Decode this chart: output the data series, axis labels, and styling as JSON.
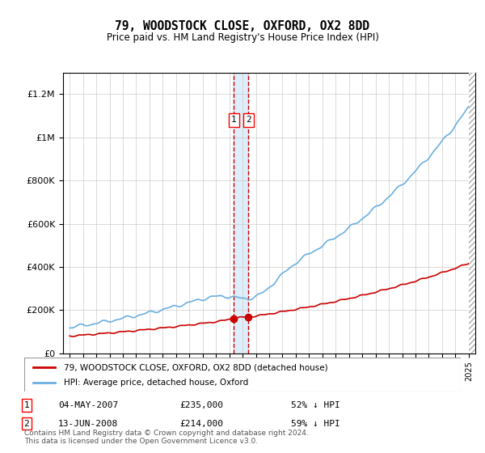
{
  "title": "79, WOODSTOCK CLOSE, OXFORD, OX2 8DD",
  "subtitle": "Price paid vs. HM Land Registry's House Price Index (HPI)",
  "legend_line1": "79, WOODSTOCK CLOSE, OXFORD, OX2 8DD (detached house)",
  "legend_line2": "HPI: Average price, detached house, Oxford",
  "footer": "Contains HM Land Registry data © Crown copyright and database right 2024.\nThis data is licensed under the Open Government Licence v3.0.",
  "table_rows": [
    {
      "num": "1",
      "date": "04-MAY-2007",
      "price": "£235,000",
      "pct": "52% ↓ HPI"
    },
    {
      "num": "2",
      "date": "13-JUN-2008",
      "price": "£214,000",
      "pct": "59% ↓ HPI"
    }
  ],
  "sale1_year": 2007.34,
  "sale1_price": 235000,
  "sale2_year": 2008.45,
  "sale2_price": 214000,
  "hpi_color": "#6ab0e0",
  "price_color": "#cc0000",
  "marker_color": "#cc0000",
  "vline_color": "#cc0000",
  "highlight_color": "#d0e8f8",
  "ylim": [
    0,
    1300000
  ],
  "xlim_start": 1995,
  "xlim_end": 2025.5,
  "yticks": [
    0,
    200000,
    400000,
    600000,
    800000,
    1000000,
    1200000
  ],
  "ytick_labels": [
    "£0",
    "£200K",
    "£400K",
    "£600K",
    "£800K",
    "£1M",
    "£1.2M"
  ],
  "xticks": [
    1995,
    1996,
    1997,
    1998,
    1999,
    2000,
    2001,
    2002,
    2003,
    2004,
    2005,
    2006,
    2007,
    2008,
    2009,
    2010,
    2011,
    2012,
    2013,
    2014,
    2015,
    2016,
    2017,
    2018,
    2019,
    2020,
    2021,
    2022,
    2023,
    2024,
    2025
  ]
}
